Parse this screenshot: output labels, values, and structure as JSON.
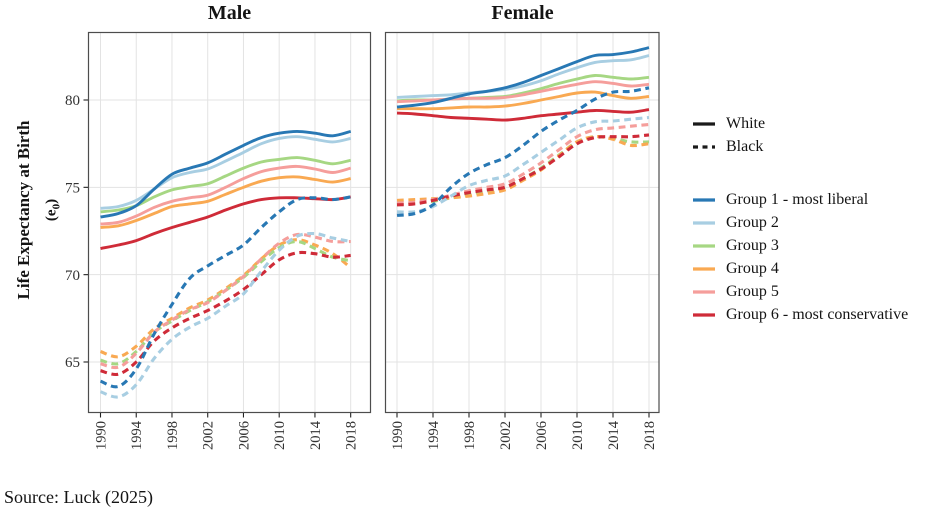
{
  "figure": {
    "source_note": "Source: Luck (2025)",
    "y_axis_label": {
      "main": "Life Expectancy at Birth",
      "sub_pre": "(e",
      "sub_digit": "0",
      "sub_post": ")"
    },
    "background_color": "#ffffff",
    "gridline_color": "#e3e3e3",
    "panel_border_color": "#4d4d4d"
  },
  "legend": {
    "position": "right",
    "race": [
      {
        "label": "White",
        "style": "solid",
        "color": "#1a1a1a"
      },
      {
        "label": "Black",
        "style": "dashed",
        "color": "#1a1a1a"
      }
    ],
    "groups": [
      {
        "label": "Group 1 - most liberal",
        "color": "#2878b4"
      },
      {
        "label": "Group 2",
        "color": "#a8cee2"
      },
      {
        "label": "Group 3",
        "color": "#a6d783"
      },
      {
        "label": "Group 4",
        "color": "#f9a952"
      },
      {
        "label": "Group 5",
        "color": "#f59e9b"
      },
      {
        "label": "Group 6 - most conservative",
        "color": "#cf2b38"
      }
    ]
  },
  "chart_data": [
    {
      "type": "line",
      "title": "Male",
      "ylabel": "Life Expectancy at Birth (e0)",
      "x": [
        1990,
        1992,
        1994,
        1996,
        1998,
        2000,
        2002,
        2004,
        2006,
        2008,
        2010,
        2012,
        2014,
        2016,
        2018
      ],
      "xticks": [
        1990,
        1994,
        1998,
        2002,
        2006,
        2010,
        2014,
        2018
      ],
      "yticks": [
        65,
        70,
        75,
        80
      ],
      "ylim": [
        62.1,
        83.9
      ],
      "grid": true,
      "series": [
        {
          "group": "Group 2",
          "race": "White",
          "color": "#a8cee2",
          "dashed": false,
          "values": [
            73.8,
            73.9,
            74.25,
            74.9,
            75.55,
            75.85,
            76.05,
            76.5,
            77.0,
            77.5,
            77.8,
            77.9,
            77.75,
            77.6,
            77.8
          ]
        },
        {
          "group": "Group 3",
          "race": "White",
          "color": "#a6d783",
          "dashed": false,
          "values": [
            73.6,
            73.7,
            73.95,
            74.45,
            74.85,
            75.05,
            75.2,
            75.65,
            76.1,
            76.45,
            76.6,
            76.7,
            76.55,
            76.35,
            76.55
          ]
        },
        {
          "group": "Group 5",
          "race": "White",
          "color": "#f59e9b",
          "dashed": false,
          "values": [
            72.9,
            73.0,
            73.35,
            73.85,
            74.2,
            74.4,
            74.55,
            75.0,
            75.5,
            75.9,
            76.1,
            76.2,
            76.05,
            75.85,
            76.1
          ]
        },
        {
          "group": "Group 4",
          "race": "White",
          "color": "#f9a952",
          "dashed": false,
          "values": [
            72.7,
            72.8,
            73.1,
            73.5,
            73.9,
            74.05,
            74.2,
            74.6,
            75.0,
            75.35,
            75.55,
            75.6,
            75.45,
            75.3,
            75.5
          ]
        },
        {
          "group": "Group 6",
          "race": "White",
          "color": "#cf2b38",
          "dashed": false,
          "values": [
            71.5,
            71.7,
            71.95,
            72.35,
            72.7,
            73.0,
            73.3,
            73.7,
            74.05,
            74.3,
            74.4,
            74.4,
            74.35,
            74.3,
            74.45
          ]
        },
        {
          "group": "Group 1",
          "race": "White",
          "color": "#2878b4",
          "dashed": false,
          "values": [
            73.3,
            73.5,
            73.95,
            74.9,
            75.75,
            76.1,
            76.4,
            76.9,
            77.4,
            77.85,
            78.1,
            78.2,
            78.1,
            77.95,
            78.2
          ]
        },
        {
          "group": "Group 4",
          "race": "Black",
          "color": "#f9a952",
          "dashed": true,
          "values": [
            65.6,
            65.3,
            65.9,
            66.9,
            67.5,
            68.1,
            68.55,
            69.2,
            69.95,
            70.9,
            71.7,
            72.0,
            71.7,
            71.2,
            70.4
          ]
        },
        {
          "group": "Group 3",
          "race": "Black",
          "color": "#a6d783",
          "dashed": true,
          "values": [
            65.1,
            64.9,
            65.6,
            66.7,
            67.35,
            67.95,
            68.45,
            69.1,
            69.85,
            70.75,
            71.55,
            71.9,
            71.5,
            71.0,
            70.8
          ]
        },
        {
          "group": "Group 5",
          "race": "Black",
          "color": "#f59e9b",
          "dashed": true,
          "values": [
            64.9,
            64.7,
            65.5,
            66.7,
            67.4,
            68.0,
            68.4,
            69.1,
            69.9,
            70.9,
            71.8,
            72.3,
            72.15,
            71.9,
            71.9
          ]
        },
        {
          "group": "Group 6",
          "race": "Black",
          "color": "#cf2b38",
          "dashed": true,
          "values": [
            64.5,
            64.3,
            65.0,
            66.2,
            66.95,
            67.5,
            67.95,
            68.5,
            69.15,
            70.0,
            70.85,
            71.25,
            71.2,
            71.0,
            71.1
          ]
        },
        {
          "group": "Group 2",
          "race": "Black",
          "color": "#a8cee2",
          "dashed": true,
          "values": [
            63.3,
            63.0,
            63.7,
            65.2,
            66.3,
            67.0,
            67.5,
            68.2,
            68.9,
            70.2,
            71.4,
            72.2,
            72.35,
            72.1,
            71.9
          ]
        },
        {
          "group": "Group 1",
          "race": "Black",
          "color": "#2878b4",
          "dashed": true,
          "values": [
            63.9,
            63.6,
            64.6,
            66.6,
            68.3,
            69.8,
            70.5,
            71.1,
            71.7,
            72.7,
            73.6,
            74.3,
            74.4,
            74.3,
            74.45
          ]
        }
      ]
    },
    {
      "type": "line",
      "title": "Female",
      "x": [
        1990,
        1992,
        1994,
        1996,
        1998,
        2000,
        2002,
        2004,
        2006,
        2008,
        2010,
        2012,
        2014,
        2016,
        2018
      ],
      "xticks": [
        1990,
        1994,
        1998,
        2002,
        2006,
        2010,
        2014,
        2018
      ],
      "yticks": [
        65,
        70,
        75,
        80
      ],
      "ylim": [
        62.1,
        83.9
      ],
      "grid": true,
      "series": [
        {
          "group": "Group 2",
          "race": "White",
          "color": "#a8cee2",
          "dashed": false,
          "values": [
            80.15,
            80.2,
            80.25,
            80.3,
            80.4,
            80.5,
            80.6,
            80.8,
            81.1,
            81.5,
            81.85,
            82.15,
            82.25,
            82.3,
            82.55
          ]
        },
        {
          "group": "Group 3",
          "race": "White",
          "color": "#a6d783",
          "dashed": false,
          "values": [
            79.95,
            80.0,
            80.0,
            80.05,
            80.1,
            80.15,
            80.2,
            80.4,
            80.65,
            80.95,
            81.2,
            81.4,
            81.3,
            81.2,
            81.3
          ]
        },
        {
          "group": "Group 5",
          "race": "White",
          "color": "#f59e9b",
          "dashed": false,
          "values": [
            79.9,
            79.95,
            80.0,
            80.05,
            80.1,
            80.1,
            80.15,
            80.3,
            80.5,
            80.7,
            80.9,
            81.05,
            80.95,
            80.8,
            80.9
          ]
        },
        {
          "group": "Group 4",
          "race": "White",
          "color": "#f9a952",
          "dashed": false,
          "values": [
            79.5,
            79.5,
            79.5,
            79.55,
            79.6,
            79.6,
            79.65,
            79.8,
            80.0,
            80.2,
            80.4,
            80.45,
            80.25,
            80.1,
            80.2
          ]
        },
        {
          "group": "Group 6",
          "race": "White",
          "color": "#cf2b38",
          "dashed": false,
          "values": [
            79.25,
            79.2,
            79.1,
            79.0,
            78.95,
            78.9,
            78.85,
            78.95,
            79.1,
            79.2,
            79.3,
            79.4,
            79.35,
            79.3,
            79.45
          ]
        },
        {
          "group": "Group 1",
          "race": "White",
          "color": "#2878b4",
          "dashed": false,
          "values": [
            79.6,
            79.7,
            79.85,
            80.1,
            80.35,
            80.5,
            80.7,
            81.0,
            81.4,
            81.8,
            82.2,
            82.55,
            82.6,
            82.75,
            83.0
          ]
        },
        {
          "group": "Group 3",
          "race": "Black",
          "color": "#a6d783",
          "dashed": true,
          "values": [
            74.0,
            74.1,
            74.2,
            74.4,
            74.6,
            74.8,
            75.0,
            75.5,
            76.1,
            76.85,
            77.6,
            77.9,
            77.8,
            77.6,
            77.6
          ]
        },
        {
          "group": "Group 4",
          "race": "Black",
          "color": "#f9a952",
          "dashed": true,
          "values": [
            74.25,
            74.3,
            74.35,
            74.4,
            74.5,
            74.65,
            74.85,
            75.4,
            76.0,
            76.8,
            77.6,
            77.9,
            77.75,
            77.4,
            77.5
          ]
        },
        {
          "group": "Group 5",
          "race": "Black",
          "color": "#f59e9b",
          "dashed": true,
          "values": [
            74.1,
            74.15,
            74.3,
            74.55,
            74.8,
            75.0,
            75.2,
            75.75,
            76.4,
            77.15,
            77.9,
            78.3,
            78.4,
            78.5,
            78.6
          ]
        },
        {
          "group": "Group 6",
          "race": "Black",
          "color": "#cf2b38",
          "dashed": true,
          "values": [
            74.0,
            74.05,
            74.25,
            74.5,
            74.7,
            74.85,
            75.0,
            75.5,
            76.05,
            76.75,
            77.5,
            77.85,
            77.9,
            77.9,
            78.0
          ]
        },
        {
          "group": "Group 2",
          "race": "Black",
          "color": "#a8cee2",
          "dashed": true,
          "values": [
            73.6,
            73.6,
            73.9,
            74.5,
            75.1,
            75.4,
            75.65,
            76.3,
            77.0,
            77.7,
            78.4,
            78.75,
            78.8,
            78.9,
            79.0
          ]
        },
        {
          "group": "Group 1",
          "race": "Black",
          "color": "#2878b4",
          "dashed": true,
          "values": [
            73.4,
            73.5,
            74.0,
            75.0,
            75.8,
            76.3,
            76.7,
            77.4,
            78.2,
            78.85,
            79.4,
            80.05,
            80.45,
            80.5,
            80.7
          ]
        }
      ]
    }
  ]
}
